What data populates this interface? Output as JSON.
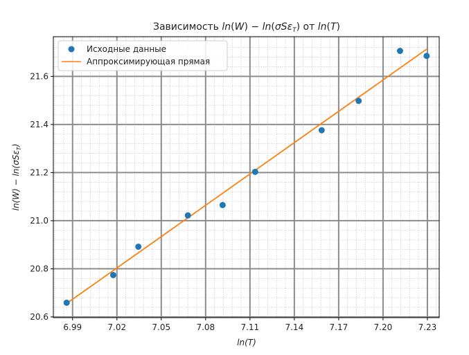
{
  "chart_data": {
    "type": "scatter",
    "title": "Зависимость ln(W) − ln(σSε_T) от ln(T)",
    "title_parts": {
      "prefix": "Зависимость ",
      "mid1": " − ",
      "mid2": " от "
    },
    "xlabel": "ln(T)",
    "ylabel": "ln(W) − ln(σSε_T)",
    "xlim": [
      6.977,
      7.238
    ],
    "ylim": [
      20.597,
      21.765
    ],
    "x_ticks": [
      6.99,
      7.02,
      7.05,
      7.08,
      7.11,
      7.14,
      7.17,
      7.2,
      7.23
    ],
    "x_tick_labels": [
      "6.99",
      "7.02",
      "7.05",
      "7.08",
      "7.11",
      "7.14",
      "7.17",
      "7.20",
      "7.23"
    ],
    "y_ticks": [
      20.6,
      20.8,
      21.0,
      21.2,
      21.4,
      21.6
    ],
    "y_tick_labels": [
      "20.6",
      "20.8",
      "21.0",
      "21.2",
      "21.4",
      "21.6"
    ],
    "grid": true,
    "legend_position": "top-left",
    "series": [
      {
        "name": "Исходные данные",
        "kind": "points",
        "color": "#1f77b4",
        "points": [
          {
            "x": 6.986,
            "y": 20.659
          },
          {
            "x": 7.0175,
            "y": 20.774
          },
          {
            "x": 7.0345,
            "y": 20.892
          },
          {
            "x": 7.068,
            "y": 21.022
          },
          {
            "x": 7.0915,
            "y": 21.065
          },
          {
            "x": 7.1135,
            "y": 21.203
          },
          {
            "x": 7.1585,
            "y": 21.376
          },
          {
            "x": 7.1835,
            "y": 21.498
          },
          {
            "x": 7.2115,
            "y": 21.706
          },
          {
            "x": 7.2295,
            "y": 21.685
          }
        ]
      },
      {
        "name": "Аппроксимирующая прямая",
        "kind": "line",
        "color": "#ff7f0e",
        "points": [
          {
            "x": 6.986,
            "y": 20.656
          },
          {
            "x": 7.2295,
            "y": 21.713
          }
        ]
      }
    ]
  }
}
